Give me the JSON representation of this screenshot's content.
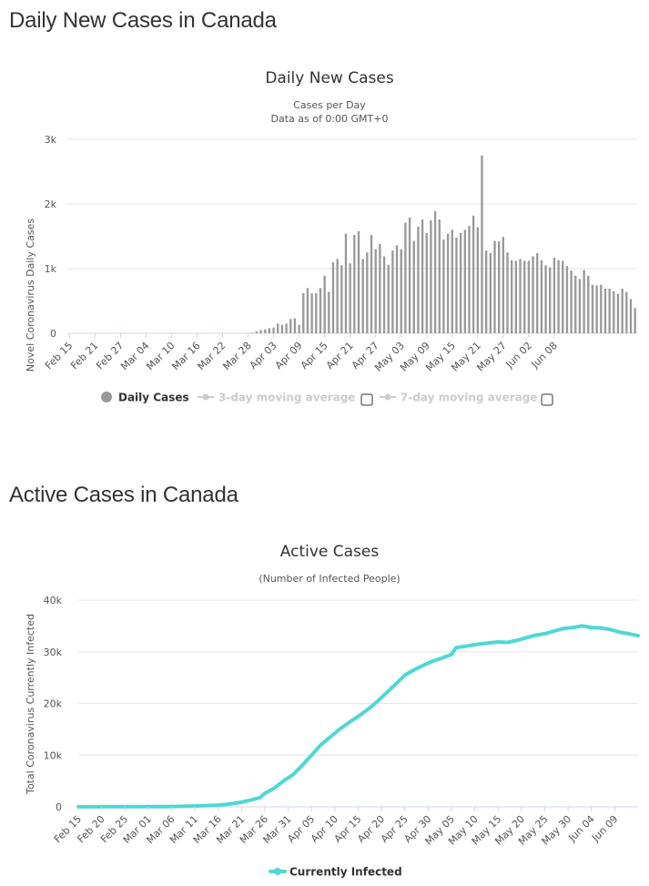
{
  "headings": {
    "daily": "Daily New Cases in Canada",
    "active": "Active Cases in Canada"
  },
  "daily_chart": {
    "title": "Daily New Cases",
    "subtitle_line1": "Cases per Day",
    "subtitle_line2": "Data as of 0:00 GMT+0",
    "ylabel": "Novel Coronavirus Daily Cases",
    "yticks": [
      "3k",
      "2k",
      "1k",
      "0"
    ],
    "legend": {
      "daily": "Daily Cases",
      "avg3": "3-day moving average",
      "avg7": "7-day moving average"
    }
  },
  "active_chart": {
    "title": "Active Cases",
    "subtitle": "(Number of Infected People)",
    "ylabel": "Total Coronavirus Currently Infected",
    "yticks": [
      "40k",
      "30k",
      "20k",
      "10k",
      "0"
    ],
    "legend": {
      "series": "Currently Infected"
    }
  },
  "colors": {
    "bar": "#999999",
    "line": "#4fd8d3",
    "grid": "#e6e6e6",
    "axis_line": "#ccd6eb"
  },
  "chart_data": [
    {
      "type": "bar",
      "title": "Daily New Cases",
      "subtitle": "Cases per Day / Data as of 0:00 GMT+0",
      "xlabel": "",
      "ylabel": "Novel Coronavirus Daily Cases",
      "ylim": [
        0,
        3000
      ],
      "grid": true,
      "legend_position": "bottom-center",
      "x_start": "Feb 15",
      "tick_labels": [
        "Feb 15",
        "Feb 21",
        "Feb 27",
        "Mar 04",
        "Mar 10",
        "Mar 16",
        "Mar 22",
        "Mar 28",
        "Apr 03",
        "Apr 09",
        "Apr 15",
        "Apr 21",
        "Apr 27",
        "May 03",
        "May 09",
        "May 15",
        "May 21",
        "May 27",
        "Jun 02",
        "Jun 08"
      ],
      "tick_interval_days": 6,
      "series": [
        {
          "name": "Daily Cases",
          "values": [
            0,
            0,
            0,
            0,
            0,
            0,
            0,
            0,
            0,
            0,
            0,
            0,
            0,
            0,
            0,
            0,
            0,
            0,
            0,
            0,
            0,
            0,
            0,
            0,
            0,
            0,
            0,
            0,
            0,
            0,
            0,
            0,
            0,
            0,
            0,
            0,
            0,
            0,
            0,
            0,
            0,
            0,
            0,
            10,
            30,
            50,
            60,
            80,
            90,
            150,
            130,
            150,
            220,
            230,
            130,
            620,
            700,
            620,
            620,
            700,
            890,
            640,
            1100,
            1150,
            1050,
            1540,
            1080,
            1520,
            1580,
            1150,
            1250,
            1520,
            1300,
            1380,
            1190,
            1060,
            1280,
            1360,
            1300,
            1710,
            1790,
            1430,
            1650,
            1760,
            1550,
            1750,
            1890,
            1760,
            1450,
            1540,
            1600,
            1480,
            1550,
            1600,
            1660,
            1820,
            1640,
            2750,
            1280,
            1240,
            1430,
            1420,
            1490,
            1250,
            1130,
            1120,
            1150,
            1120,
            1120,
            1190,
            1240,
            1130,
            1050,
            1020,
            1170,
            1130,
            1120,
            1040,
            970,
            890,
            840,
            980,
            890,
            750,
            740,
            750,
            690,
            690,
            650,
            610,
            690,
            640,
            530,
            390
          ]
        },
        {
          "name": "3-day moving average",
          "values": [],
          "hidden": true
        },
        {
          "name": "7-day moving average",
          "values": [],
          "hidden": true
        }
      ]
    },
    {
      "type": "line",
      "title": "Active Cases",
      "subtitle": "(Number of Infected People)",
      "xlabel": "",
      "ylabel": "Total Coronavirus Currently Infected",
      "ylim": [
        0,
        40000
      ],
      "grid": true,
      "legend_position": "bottom-center",
      "x_start": "Feb 15",
      "tick_labels": [
        "Feb 15",
        "Feb 20",
        "Feb 25",
        "Mar 01",
        "Mar 06",
        "Mar 11",
        "Mar 16",
        "Mar 21",
        "Mar 26",
        "Mar 31",
        "Apr 05",
        "Apr 10",
        "Apr 15",
        "Apr 20",
        "Apr 25",
        "Apr 30",
        "May 05",
        "May 10",
        "May 15",
        "May 20",
        "May 25",
        "May 30",
        "Jun 04",
        "Jun 09"
      ],
      "tick_interval_days": 5,
      "series": [
        {
          "name": "Currently Infected",
          "points": [
            [
              0,
              0
            ],
            [
              20,
              50
            ],
            [
              25,
              150
            ],
            [
              30,
              300
            ],
            [
              33,
              600
            ],
            [
              35,
              900
            ],
            [
              37,
              1300
            ],
            [
              39,
              1800
            ],
            [
              40,
              2600
            ],
            [
              42,
              3600
            ],
            [
              44,
              5000
            ],
            [
              46,
              6200
            ],
            [
              48,
              8000
            ],
            [
              50,
              10000
            ],
            [
              52,
              12000
            ],
            [
              54,
              13500
            ],
            [
              56,
              15000
            ],
            [
              58,
              16300
            ],
            [
              60,
              17500
            ],
            [
              62,
              18800
            ],
            [
              64,
              20300
            ],
            [
              66,
              22000
            ],
            [
              68,
              23700
            ],
            [
              70,
              25500
            ],
            [
              72,
              26500
            ],
            [
              74,
              27400
            ],
            [
              76,
              28200
            ],
            [
              78,
              28800
            ],
            [
              80,
              29500
            ],
            [
              81,
              30800
            ],
            [
              84,
              31200
            ],
            [
              86,
              31500
            ],
            [
              88,
              31700
            ],
            [
              90,
              31900
            ],
            [
              92,
              31800
            ],
            [
              94,
              32200
            ],
            [
              96,
              32700
            ],
            [
              98,
              33200
            ],
            [
              100,
              33500
            ],
            [
              102,
              34000
            ],
            [
              104,
              34500
            ],
            [
              106,
              34700
            ],
            [
              108,
              35000
            ],
            [
              110,
              34700
            ],
            [
              112,
              34600
            ],
            [
              114,
              34300
            ],
            [
              116,
              33800
            ],
            [
              118,
              33500
            ],
            [
              120,
              33100
            ]
          ]
        }
      ]
    }
  ]
}
